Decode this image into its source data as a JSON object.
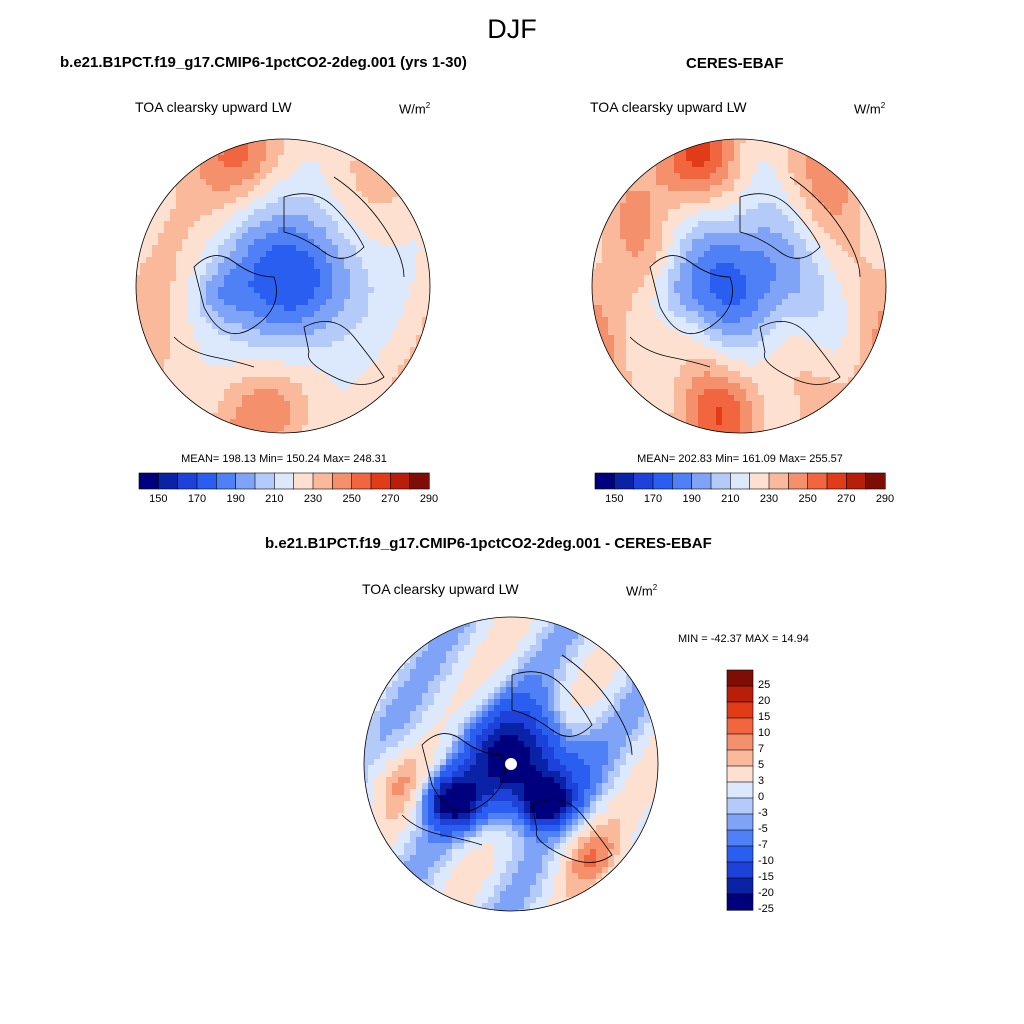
{
  "page": {
    "season": "DJF",
    "unit_base": "W/m",
    "unit_exp": "2"
  },
  "palettes": {
    "absolute": [
      "#00007f",
      "#0a22a6",
      "#1e42d9",
      "#2a5ef0",
      "#4f80f5",
      "#7ea3f7",
      "#b4cbf9",
      "#dce8fb",
      "#fde0cf",
      "#f9b99a",
      "#f5906d",
      "#f1653f",
      "#e23b17",
      "#b91e0a",
      "#7e0e05"
    ],
    "difference": [
      "#00007f",
      "#0a22a6",
      "#1e42d9",
      "#2a5ef0",
      "#4f80f5",
      "#7ea3f7",
      "#b4cbf9",
      "#dce8fb",
      "#fde0cf",
      "#f9b99a",
      "#f5906d",
      "#f1653f",
      "#e23b17",
      "#b91e0a",
      "#7e0e05"
    ]
  },
  "chart_data": [
    {
      "type": "heatmap",
      "projection": "north-polar-stereographic",
      "title": "b.e21.B1PCT.f19_g17.CMIP6-1pctCO2-2deg.001 (yrs 1-30)",
      "variable": "TOA clearsky upward LW",
      "stats": {
        "mean": 198.13,
        "min": 150.24,
        "max": 248.31
      },
      "stats_text": "MEAN= 198.13  Min= 150.24  Max= 248.31",
      "colorbar_levels": [
        150,
        160,
        170,
        180,
        190,
        200,
        210,
        220,
        230,
        240,
        250,
        260,
        270,
        280,
        290
      ],
      "colorbar_tick_labels": [
        "150",
        "170",
        "190",
        "210",
        "230",
        "250",
        "270",
        "290"
      ],
      "colorbar_orientation": "horizontal"
    },
    {
      "type": "heatmap",
      "projection": "north-polar-stereographic",
      "title": "CERES-EBAF",
      "variable": "TOA clearsky upward LW",
      "stats": {
        "mean": 202.83,
        "min": 161.09,
        "max": 255.57
      },
      "stats_text": "MEAN= 202.83  Min= 161.09  Max= 255.57",
      "colorbar_levels": [
        150,
        160,
        170,
        180,
        190,
        200,
        210,
        220,
        230,
        240,
        250,
        260,
        270,
        280,
        290
      ],
      "colorbar_tick_labels": [
        "150",
        "170",
        "190",
        "210",
        "230",
        "250",
        "270",
        "290"
      ],
      "colorbar_orientation": "horizontal"
    },
    {
      "type": "heatmap",
      "projection": "north-polar-stereographic",
      "title": "b.e21.B1PCT.f19_g17.CMIP6-1pctCO2-2deg.001 - CERES-EBAF",
      "variable": "TOA clearsky upward LW",
      "stats": {
        "min": -42.37,
        "max": 14.94
      },
      "stats_text": "MIN = -42.37 MAX =  14.94",
      "colorbar_levels": [
        -25,
        -20,
        -15,
        -10,
        -7,
        -5,
        -3,
        0,
        3,
        5,
        7,
        10,
        15,
        20,
        25
      ],
      "colorbar_tick_labels": [
        "25",
        "20",
        "15",
        "10",
        "7",
        "5",
        "3",
        "0",
        "-3",
        "-5",
        "-7",
        "-10",
        "-15",
        "-20",
        "-25"
      ],
      "colorbar_orientation": "vertical"
    }
  ]
}
